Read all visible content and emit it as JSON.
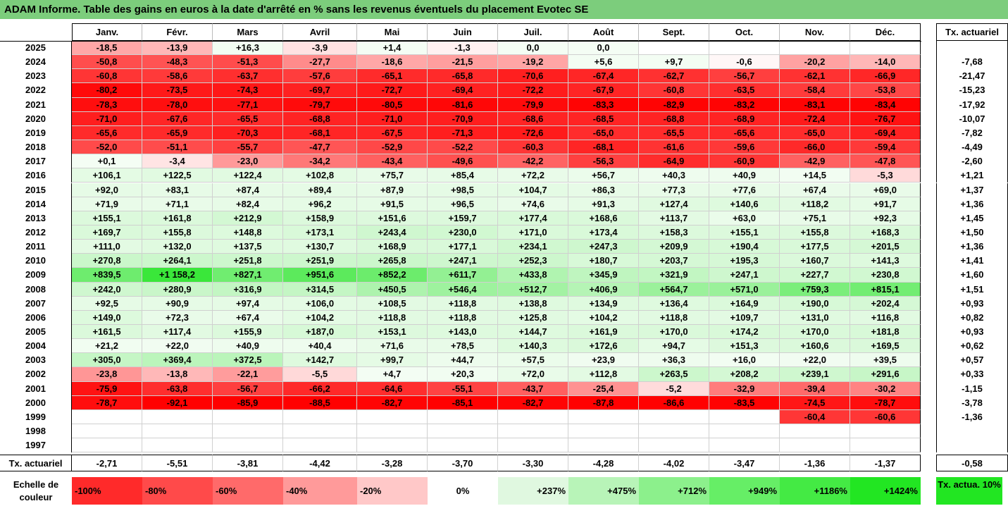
{
  "title": "ADAM Informe. Table des gains en euros à la date d'arrêté en % sans les revenus éventuels du placement Evotec SE",
  "chart_data": {
    "type": "table",
    "months": [
      "Janv.",
      "Févr.",
      "Mars",
      "Avril",
      "Mai",
      "Juin",
      "Juil.",
      "Août",
      "Sept.",
      "Oct.",
      "Nov.",
      "Déc."
    ],
    "tx_header": "Tx. actuariel",
    "rows": [
      {
        "year": "2025",
        "values": [
          "-18,5",
          "-13,9",
          "+16,3",
          "-3,9",
          "+1,4",
          "-1,3",
          "0,0",
          "0,0",
          "",
          "",
          "",
          ""
        ],
        "tx": ""
      },
      {
        "year": "2024",
        "values": [
          "-50,8",
          "-48,3",
          "-51,3",
          "-27,7",
          "-18,6",
          "-21,5",
          "-19,2",
          "+5,6",
          "+9,7",
          "-0,6",
          "-20,2",
          "-14,0"
        ],
        "tx": "-7,68"
      },
      {
        "year": "2023",
        "values": [
          "-60,8",
          "-58,6",
          "-63,7",
          "-57,6",
          "-65,1",
          "-65,8",
          "-70,6",
          "-67,4",
          "-62,7",
          "-56,7",
          "-62,1",
          "-66,9"
        ],
        "tx": "-21,47"
      },
      {
        "year": "2022",
        "values": [
          "-80,2",
          "-73,5",
          "-74,3",
          "-69,7",
          "-72,7",
          "-69,4",
          "-72,2",
          "-67,9",
          "-60,8",
          "-63,5",
          "-58,4",
          "-53,8"
        ],
        "tx": "-15,23"
      },
      {
        "year": "2021",
        "values": [
          "-78,3",
          "-78,0",
          "-77,1",
          "-79,7",
          "-80,5",
          "-81,6",
          "-79,9",
          "-83,3",
          "-82,9",
          "-83,2",
          "-83,1",
          "-83,4"
        ],
        "tx": "-17,92"
      },
      {
        "year": "2020",
        "values": [
          "-71,0",
          "-67,6",
          "-65,5",
          "-68,8",
          "-71,0",
          "-70,9",
          "-68,6",
          "-68,5",
          "-68,8",
          "-68,9",
          "-72,4",
          "-76,7"
        ],
        "tx": "-10,07"
      },
      {
        "year": "2019",
        "values": [
          "-65,6",
          "-65,9",
          "-70,3",
          "-68,1",
          "-67,5",
          "-71,3",
          "-72,6",
          "-65,0",
          "-65,5",
          "-65,6",
          "-65,0",
          "-69,4"
        ],
        "tx": "-7,82"
      },
      {
        "year": "2018",
        "values": [
          "-52,0",
          "-51,1",
          "-55,7",
          "-47,7",
          "-52,9",
          "-52,2",
          "-60,3",
          "-68,1",
          "-61,6",
          "-59,6",
          "-66,0",
          "-59,4"
        ],
        "tx": "-4,49"
      },
      {
        "year": "2017",
        "values": [
          "+0,1",
          "-3,4",
          "-23,0",
          "-34,2",
          "-43,4",
          "-49,6",
          "-42,2",
          "-56,3",
          "-64,9",
          "-60,9",
          "-42,9",
          "-47,8"
        ],
        "tx": "-2,60"
      },
      {
        "year": "2016",
        "values": [
          "+106,1",
          "+122,5",
          "+122,4",
          "+102,8",
          "+75,7",
          "+85,4",
          "+72,2",
          "+56,7",
          "+40,3",
          "+40,9",
          "+14,5",
          "-5,3"
        ],
        "tx": "+1,21"
      },
      {
        "year": "2015",
        "values": [
          "+92,0",
          "+83,1",
          "+87,4",
          "+89,4",
          "+87,9",
          "+98,5",
          "+104,7",
          "+86,3",
          "+77,3",
          "+77,6",
          "+67,4",
          "+69,0"
        ],
        "tx": "+1,37"
      },
      {
        "year": "2014",
        "values": [
          "+71,9",
          "+71,1",
          "+82,4",
          "+96,2",
          "+91,5",
          "+96,5",
          "+74,6",
          "+91,3",
          "+127,4",
          "+140,6",
          "+118,2",
          "+91,7"
        ],
        "tx": "+1,36"
      },
      {
        "year": "2013",
        "values": [
          "+155,1",
          "+161,8",
          "+212,9",
          "+158,9",
          "+151,6",
          "+159,7",
          "+177,4",
          "+168,6",
          "+113,7",
          "+63,0",
          "+75,1",
          "+92,3"
        ],
        "tx": "+1,45"
      },
      {
        "year": "2012",
        "values": [
          "+169,7",
          "+155,8",
          "+148,8",
          "+173,1",
          "+243,4",
          "+230,0",
          "+171,0",
          "+173,4",
          "+158,3",
          "+155,1",
          "+155,8",
          "+168,3"
        ],
        "tx": "+1,50"
      },
      {
        "year": "2011",
        "values": [
          "+111,0",
          "+132,0",
          "+137,5",
          "+130,7",
          "+168,9",
          "+177,1",
          "+234,1",
          "+247,3",
          "+209,9",
          "+190,4",
          "+177,5",
          "+201,5"
        ],
        "tx": "+1,36"
      },
      {
        "year": "2010",
        "values": [
          "+270,8",
          "+264,1",
          "+251,8",
          "+251,9",
          "+265,8",
          "+247,1",
          "+252,3",
          "+180,7",
          "+203,7",
          "+195,3",
          "+160,7",
          "+141,3"
        ],
        "tx": "+1,41"
      },
      {
        "year": "2009",
        "values": [
          "+839,5",
          "+1 158,2",
          "+827,1",
          "+951,6",
          "+852,2",
          "+611,7",
          "+433,8",
          "+345,9",
          "+321,9",
          "+247,1",
          "+227,7",
          "+230,8"
        ],
        "tx": "+1,60"
      },
      {
        "year": "2008",
        "values": [
          "+242,0",
          "+280,9",
          "+316,9",
          "+314,5",
          "+450,5",
          "+546,4",
          "+512,7",
          "+406,9",
          "+564,7",
          "+571,0",
          "+759,3",
          "+815,1"
        ],
        "tx": "+1,51"
      },
      {
        "year": "2007",
        "values": [
          "+92,5",
          "+90,9",
          "+97,4",
          "+106,0",
          "+108,5",
          "+118,8",
          "+138,8",
          "+134,9",
          "+136,4",
          "+164,9",
          "+190,0",
          "+202,4"
        ],
        "tx": "+0,93"
      },
      {
        "year": "2006",
        "values": [
          "+149,0",
          "+72,3",
          "+67,4",
          "+104,2",
          "+118,8",
          "+118,8",
          "+125,8",
          "+104,2",
          "+118,8",
          "+109,7",
          "+131,0",
          "+116,8"
        ],
        "tx": "+0,82"
      },
      {
        "year": "2005",
        "values": [
          "+161,5",
          "+117,4",
          "+155,9",
          "+187,0",
          "+153,1",
          "+143,0",
          "+144,7",
          "+161,9",
          "+170,0",
          "+174,2",
          "+170,0",
          "+181,8"
        ],
        "tx": "+0,93"
      },
      {
        "year": "2004",
        "values": [
          "+21,2",
          "+22,0",
          "+40,9",
          "+40,4",
          "+71,6",
          "+78,5",
          "+140,3",
          "+172,6",
          "+94,7",
          "+151,3",
          "+160,6",
          "+169,5"
        ],
        "tx": "+0,62"
      },
      {
        "year": "2003",
        "values": [
          "+305,0",
          "+369,4",
          "+372,5",
          "+142,7",
          "+99,7",
          "+44,7",
          "+57,5",
          "+23,9",
          "+36,3",
          "+16,0",
          "+22,0",
          "+39,5"
        ],
        "tx": "+0,57"
      },
      {
        "year": "2002",
        "values": [
          "-23,8",
          "-13,8",
          "-22,1",
          "-5,5",
          "+4,7",
          "+20,3",
          "+72,0",
          "+112,8",
          "+263,5",
          "+208,2",
          "+239,1",
          "+291,6"
        ],
        "tx": "+0,33"
      },
      {
        "year": "2001",
        "values": [
          "-75,9",
          "-63,8",
          "-56,7",
          "-66,2",
          "-64,6",
          "-55,1",
          "-43,7",
          "-25,4",
          "-5,2",
          "-32,9",
          "-39,4",
          "-30,2"
        ],
        "tx": "-1,15"
      },
      {
        "year": "2000",
        "values": [
          "-78,7",
          "-92,1",
          "-85,9",
          "-88,5",
          "-82,7",
          "-85,1",
          "-82,7",
          "-87,8",
          "-86,6",
          "-83,5",
          "-74,5",
          "-78,7"
        ],
        "tx": "-3,78"
      },
      {
        "year": "1999",
        "values": [
          "",
          "",
          "",
          "",
          "",
          "",
          "",
          "",
          "",
          "",
          "-60,4",
          "-60,6"
        ],
        "tx": "-1,36"
      },
      {
        "year": "1998",
        "values": [
          "",
          "",
          "",
          "",
          "",
          "",
          "",
          "",
          "",
          "",
          "",
          ""
        ],
        "tx": ""
      },
      {
        "year": "1997",
        "values": [
          "",
          "",
          "",
          "",
          "",
          "",
          "",
          "",
          "",
          "",
          "",
          ""
        ],
        "tx": ""
      }
    ],
    "footer": {
      "label": "Tx. actuariel",
      "values": [
        "-2,71",
        "-5,51",
        "-3,81",
        "-4,42",
        "-3,28",
        "-3,70",
        "-3,30",
        "-4,28",
        "-4,02",
        "-3,47",
        "-1,36",
        "-1,37"
      ],
      "tx": "-0,58"
    },
    "scale": {
      "label": "Echelle de couleur",
      "items": [
        {
          "text": "-100%",
          "color": "#ff2a2a",
          "align": "left"
        },
        {
          "text": "-80%",
          "color": "#ff4a4a",
          "align": "left"
        },
        {
          "text": "-60%",
          "color": "#ff6a6a",
          "align": "left"
        },
        {
          "text": "-40%",
          "color": "#ff9a9a",
          "align": "left"
        },
        {
          "text": "-20%",
          "color": "#ffc8c8",
          "align": "left"
        },
        {
          "text": "0%",
          "color": "#ffffff",
          "align": "center"
        },
        {
          "text": "+237%",
          "color": "#e0f8e0",
          "align": "right"
        },
        {
          "text": "+475%",
          "color": "#b8f4b8",
          "align": "right"
        },
        {
          "text": "+712%",
          "color": "#8cf08c",
          "align": "right"
        },
        {
          "text": "+949%",
          "color": "#66ee66",
          "align": "right"
        },
        {
          "text": "+1186%",
          "color": "#44ea44",
          "align": "right"
        },
        {
          "text": "+1424%",
          "color": "#22e622",
          "align": "right"
        }
      ],
      "tx_label": "Tx. actua. 10%",
      "tx_color": "#22e622"
    }
  }
}
